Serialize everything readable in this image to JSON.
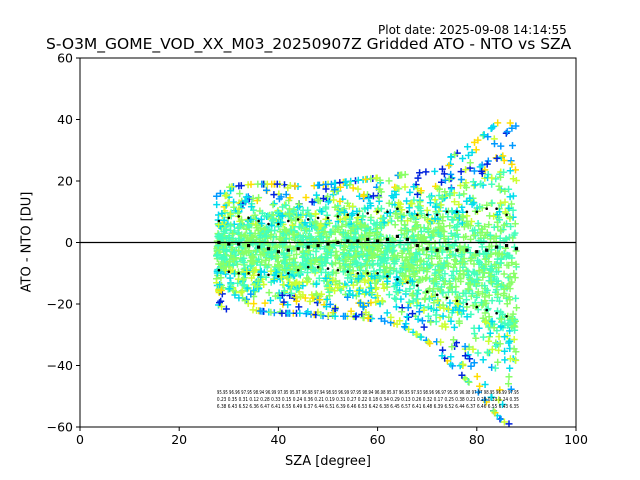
{
  "chart_data": {
    "type": "scatter",
    "title": "S-O3M_GOME_VOD_XX_M03_20250907Z Gridded ATO - NTO vs SZA",
    "plot_date": "Plot date: 2025-09-08 14:14:55",
    "xlabel": "SZA [degree]",
    "ylabel": "ATO - NTO [DU]",
    "xlim": [
      0,
      100
    ],
    "ylim": [
      -60,
      60
    ],
    "xticks": [
      0,
      20,
      40,
      60,
      80,
      100
    ],
    "yticks": [
      -60,
      -40,
      -20,
      0,
      20,
      40,
      60
    ],
    "xtick_labels": [
      "0",
      "20",
      "40",
      "60",
      "80",
      "100"
    ],
    "ytick_labels": [
      "−60",
      "−40",
      "−20",
      "0",
      "20",
      "40",
      "60"
    ],
    "marker": "+",
    "colormap": [
      "#0022dd",
      "#0099ff",
      "#00ddee",
      "#44ffbb",
      "#88ff66",
      "#ccff33",
      "#ffdd00"
    ],
    "zero_line_color": "#000000",
    "scatter_density": {
      "x": [
        27.5,
        30,
        35,
        40,
        45,
        50,
        55,
        60,
        65,
        70,
        75,
        80,
        85,
        88
      ],
      "upper": [
        15,
        18,
        19,
        19,
        18,
        19,
        20,
        21,
        22,
        23,
        28,
        33,
        40,
        38
      ],
      "lower": [
        -20,
        -22,
        -22,
        -23,
        -23,
        -24,
        -24,
        -25,
        -27,
        -32,
        -40,
        -48,
        -58,
        -60
      ]
    },
    "series": [
      {
        "name": "median",
        "style": "black squares",
        "x": [
          28,
          30,
          32,
          34,
          36,
          38,
          40,
          42,
          44,
          46,
          48,
          50,
          52,
          54,
          56,
          58,
          60,
          62,
          64,
          66,
          68,
          70,
          72,
          74,
          76,
          78,
          80,
          82,
          84,
          86,
          88
        ],
        "y": [
          0,
          -0.5,
          -0.5,
          -1,
          -1.5,
          -2,
          -3,
          -2.5,
          -2,
          -1.5,
          -1,
          -0.5,
          0,
          0.5,
          0.5,
          1,
          0.5,
          1,
          2,
          1,
          -1,
          -2,
          -2.5,
          -2,
          -2.5,
          -2.5,
          -3,
          -2.5,
          -1.5,
          -1,
          -2
        ]
      },
      {
        "name": "upper_percentile",
        "style": "black dots",
        "x": [
          28,
          30,
          32,
          34,
          36,
          38,
          40,
          42,
          44,
          46,
          48,
          50,
          52,
          54,
          56,
          58,
          60,
          62,
          64,
          66,
          68,
          70,
          72,
          74,
          76,
          78,
          80,
          82,
          84,
          86
        ],
        "y": [
          7,
          8,
          8.5,
          8,
          7,
          6,
          6,
          7,
          7.5,
          7.5,
          8,
          8,
          8.5,
          9,
          9,
          9.5,
          10,
          10,
          11,
          10,
          9,
          9,
          9,
          10,
          10,
          10,
          10,
          11,
          11,
          9
        ]
      },
      {
        "name": "lower_percentile",
        "style": "black dots",
        "x": [
          28,
          30,
          32,
          34,
          36,
          38,
          40,
          42,
          44,
          46,
          48,
          50,
          52,
          54,
          56,
          58,
          60,
          62,
          64,
          66,
          68,
          70,
          72,
          74,
          76,
          78,
          80,
          82,
          84,
          86
        ],
        "y": [
          -9,
          -9.5,
          -10,
          -10,
          -10.5,
          -10.5,
          -11,
          -10,
          -9,
          -8,
          -8,
          -8.5,
          -9,
          -9.5,
          -10,
          -10,
          -10,
          -11,
          -12,
          -13,
          -14,
          -16,
          -17,
          -18,
          -19,
          -20,
          -21,
          -22,
          -23,
          -24
        ]
      }
    ],
    "bin_stats": [
      "95.95 96.96 97.95 98.94 96.99 97.95 95.97 96.98 97.94 98.93 96.99 97.95 98.94 96.98 95.97 96.95 97.93 98.96 96.97 95.95 96.98 97.97 98.95 96.99 97.95",
      "0.23 0.35 0.31 0.12 0.28 0.33 0.15 0.24 0.36 0.21 0.19 0.31 0.27 0.22 0.18 0.34 0.29 0.13 0.26 0.32 0.17 0.25 0.38 0.21 0.29 0.33 0.24 0.35",
      "6.38 6.43 6.52 6.36 6.47 6.41 6.55 6.49 6.37 6.44 6.51 6.39 6.46 6.53 6.42 6.38 6.45 6.57 6.41 6.48 6.39 6.52 6.44 6.37 6.46 6.55 6.43 6.35"
    ]
  }
}
